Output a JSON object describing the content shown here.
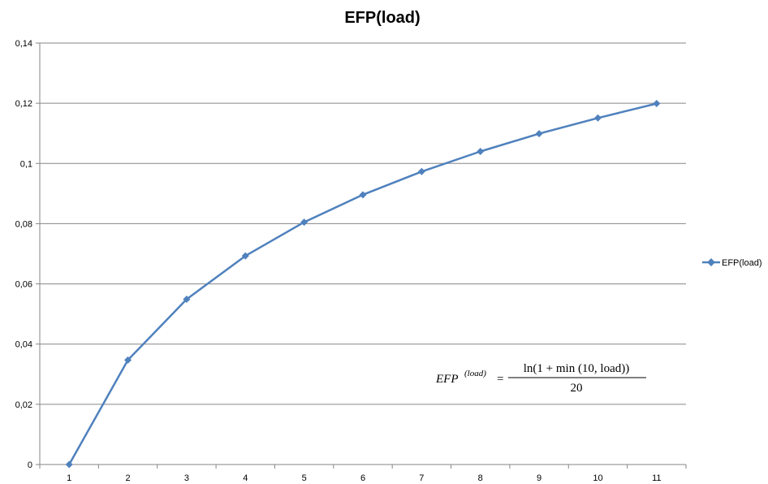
{
  "chart_data": {
    "type": "line",
    "title": "EFP(load)",
    "xlabel": "",
    "ylabel": "",
    "categories": [
      "1",
      "2",
      "3",
      "4",
      "5",
      "6",
      "7",
      "8",
      "9",
      "10",
      "11"
    ],
    "ylim": [
      0,
      0.14
    ],
    "yticks": [
      0,
      0.02,
      0.04,
      0.06,
      0.08,
      0.1,
      0.12,
      0.14
    ],
    "ytick_labels": [
      "0",
      "0,02",
      "0,04",
      "0,06",
      "0,08",
      "0,1",
      "0,12",
      "0,14"
    ],
    "grid": "horizontal",
    "legend_position": "right",
    "series": [
      {
        "name": "EFP(load)",
        "color": "#4F81BD",
        "marker": "diamond",
        "values": [
          0,
          0.0347,
          0.0549,
          0.0693,
          0.0805,
          0.0896,
          0.0973,
          0.104,
          0.1099,
          0.1151,
          0.1199
        ]
      }
    ],
    "annotation": {
      "lhs": "EFP",
      "lhs_superscript": "(load)",
      "numerator": "ln(1 + min (10,  load))",
      "denominator": "20"
    }
  }
}
